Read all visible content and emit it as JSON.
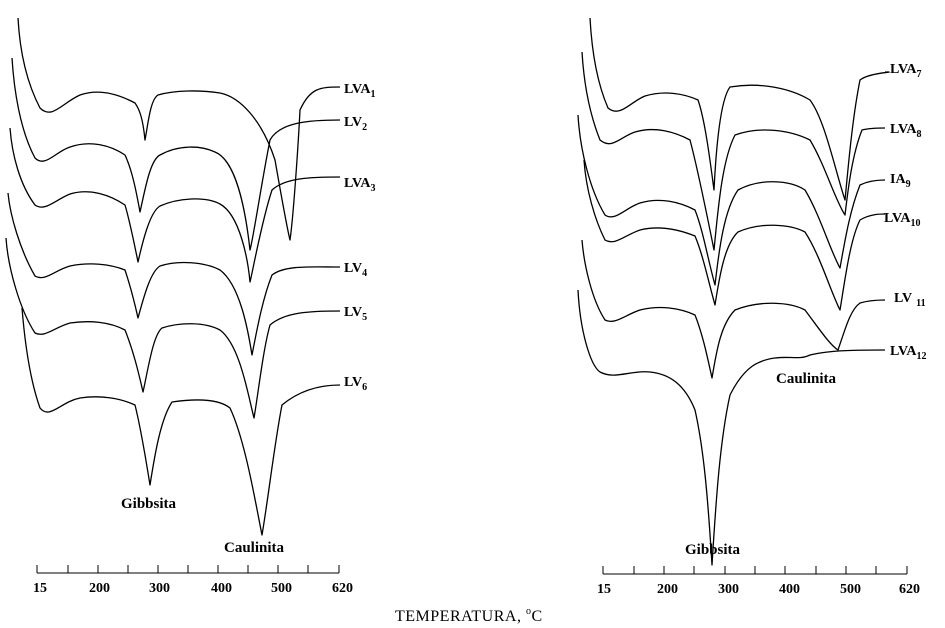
{
  "chart_data": [
    {
      "type": "line",
      "panel": "left",
      "xlabel": "TEMPERATURA, °C",
      "x_tick_labels": [
        "15",
        "200",
        "300",
        "400",
        "500",
        "620"
      ],
      "xlim": [
        15,
        620
      ],
      "series": [
        {
          "name": "LVA1",
          "label_base": "LVA",
          "label_sub": "1",
          "dip_gibbsite_c": 265,
          "dip_kaolinite_c": 450
        },
        {
          "name": "LV2",
          "label_base": "LV",
          "label_sub": "2",
          "dip_gibbsite_c": 255,
          "dip_kaolinite_c": 430
        },
        {
          "name": "LVA3",
          "label_base": "LVA",
          "label_sub": "3",
          "dip_gibbsite_c": 255,
          "dip_kaolinite_c": 440
        },
        {
          "name": "LV4",
          "label_base": "LV",
          "label_sub": "4",
          "dip_gibbsite_c": 260,
          "dip_kaolinite_c": 435
        },
        {
          "name": "LV5",
          "label_base": "LV",
          "label_sub": "5",
          "dip_gibbsite_c": 270,
          "dip_kaolinite_c": 450
        },
        {
          "name": "LV6",
          "label_base": "LV",
          "label_sub": "6",
          "dip_gibbsite_c": 275,
          "dip_kaolinite_c": 450
        }
      ],
      "annotations": [
        "Gibbsita",
        "Caulinita"
      ]
    },
    {
      "type": "line",
      "panel": "right",
      "xlabel": "TEMPERATURA, °C",
      "x_tick_labels": [
        "15",
        "200",
        "300",
        "400",
        "500",
        "620"
      ],
      "xlim": [
        15,
        620
      ],
      "series": [
        {
          "name": "LVA7",
          "label_base": "LVA",
          "label_sub": "7",
          "dip_gibbsite_c": 270,
          "dip_kaolinite_c": 450
        },
        {
          "name": "LVA8",
          "label_base": "LVA",
          "label_sub": "8",
          "dip_gibbsite_c": 270,
          "dip_kaolinite_c": 450
        },
        {
          "name": "IA9",
          "label_base": "IA",
          "label_sub": "9",
          "dip_gibbsite_c": 270,
          "dip_kaolinite_c": 435
        },
        {
          "name": "LVA10",
          "label_base": "LVA",
          "label_sub": "10",
          "dip_gibbsite_c": 270,
          "dip_kaolinite_c": 445
        },
        {
          "name": "LV 11",
          "label_base": "LV",
          "label_sub": "11",
          "dip_gibbsite_c": 270,
          "dip_kaolinite_c": 435
        },
        {
          "name": "LVA12",
          "label_base": "LVA",
          "label_sub": "12",
          "dip_gibbsite_c": 270,
          "dip_kaolinite_c": 410
        }
      ],
      "annotations": [
        "Gibbsita",
        "Caulinita"
      ]
    }
  ],
  "labels": {
    "left_gibbsite": "Gibbsita",
    "left_caulinita": "Caulinita",
    "right_gibbsite": "Gibbsita",
    "right_caulinita": "Caulinita",
    "x_title_main": "TEMPERATURA, ",
    "x_title_degree": "o",
    "x_title_unit": "C"
  }
}
